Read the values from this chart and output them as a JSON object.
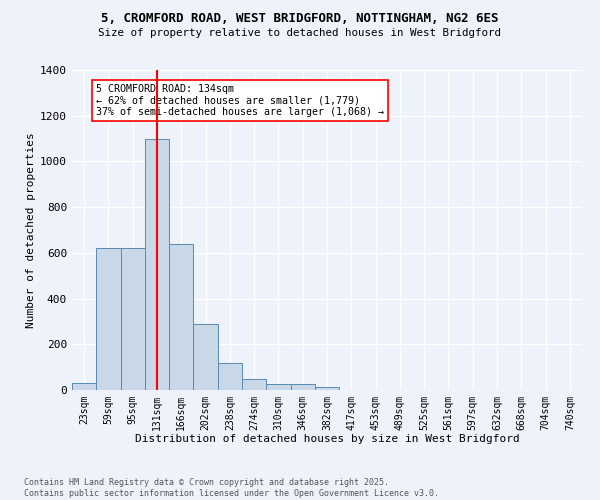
{
  "title_line1": "5, CROMFORD ROAD, WEST BRIDGFORD, NOTTINGHAM, NG2 6ES",
  "title_line2": "Size of property relative to detached houses in West Bridgford",
  "xlabel": "Distribution of detached houses by size in West Bridgford",
  "ylabel": "Number of detached properties",
  "categories": [
    "23sqm",
    "59sqm",
    "95sqm",
    "131sqm",
    "166sqm",
    "202sqm",
    "238sqm",
    "274sqm",
    "310sqm",
    "346sqm",
    "382sqm",
    "417sqm",
    "453sqm",
    "489sqm",
    "525sqm",
    "561sqm",
    "597sqm",
    "632sqm",
    "668sqm",
    "704sqm",
    "740sqm"
  ],
  "values": [
    30,
    620,
    620,
    1100,
    640,
    290,
    120,
    50,
    25,
    25,
    15,
    0,
    0,
    0,
    0,
    0,
    0,
    0,
    0,
    0,
    0
  ],
  "bar_color": "#c8d8e8",
  "bar_edge_color": "#5a8ab0",
  "vline_color": "red",
  "annotation_text": "5 CROMFORD ROAD: 134sqm\n← 62% of detached houses are smaller (1,779)\n37% of semi-detached houses are larger (1,068) →",
  "annotation_box_color": "white",
  "annotation_box_edge": "red",
  "ylim": [
    0,
    1400
  ],
  "yticks": [
    0,
    200,
    400,
    600,
    800,
    1000,
    1200,
    1400
  ],
  "footer_line1": "Contains HM Land Registry data © Crown copyright and database right 2025.",
  "footer_line2": "Contains public sector information licensed under the Open Government Licence v3.0.",
  "bg_color": "#eef2fb",
  "grid_color": "#ffffff"
}
